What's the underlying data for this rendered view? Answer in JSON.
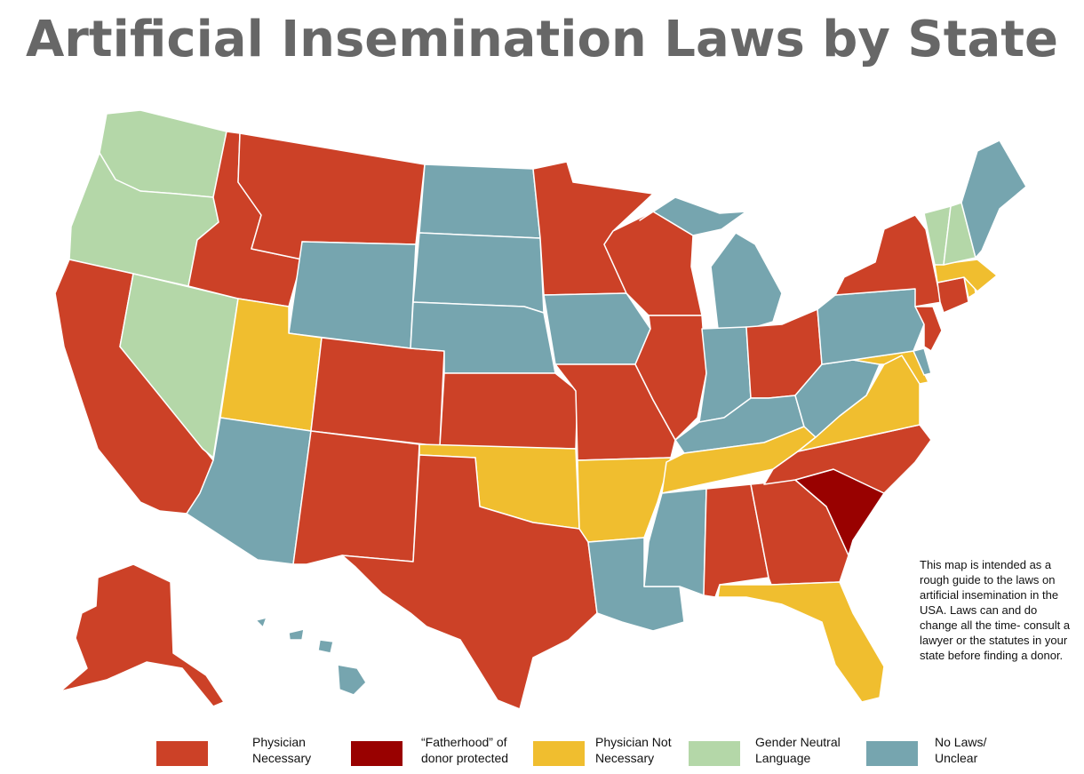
{
  "title": "Artificial Insemination Laws by State",
  "note": "This map is intended as a rough guide to the laws on artificial insemination in the USA. Laws can and do change all the time- consult a lawyer or the statutes in your state before finding a donor.",
  "colors": {
    "physician_necessary": "#cc4127",
    "fatherhood_protected": "#990100",
    "physician_not_necessary": "#f0be2f",
    "gender_neutral": "#b4d7a8",
    "no_laws": "#76a5af"
  },
  "legend": [
    {
      "key": "physician_necessary",
      "label": "Physician\nNecessary"
    },
    {
      "key": "fatherhood_protected",
      "label": "“Fatherhood” of\ndonor protected"
    },
    {
      "key": "physician_not_necessary",
      "label": "Physician Not\nNecessary"
    },
    {
      "key": "gender_neutral",
      "label": "Gender Neutral\nLanguage"
    },
    {
      "key": "no_laws",
      "label": "No Laws/\nUnclear"
    }
  ],
  "state_categories": {
    "WA": "gender_neutral",
    "OR": "gender_neutral",
    "NV": "gender_neutral",
    "VT": "gender_neutral",
    "NH": "gender_neutral",
    "CA": "physician_necessary",
    "ID": "physician_necessary",
    "MT": "physician_necessary",
    "CO": "physician_necessary",
    "NM": "physician_necessary",
    "TX": "physician_necessary",
    "KS": "physician_necessary",
    "MN": "physician_necessary",
    "WI": "physician_necessary",
    "MO": "physician_necessary",
    "IL": "physician_necessary",
    "OH": "physician_necessary",
    "NY": "physician_necessary",
    "NJ": "physician_necessary",
    "CT": "physician_necessary",
    "AL": "physician_necessary",
    "GA": "physician_necessary",
    "NC": "physician_necessary",
    "AK": "physician_necessary",
    "SC": "fatherhood_protected",
    "UT": "physician_not_necessary",
    "OK": "physician_not_necessary",
    "AR": "physician_not_necessary",
    "TN": "physician_not_necessary",
    "VA": "physician_not_necessary",
    "MD": "physician_not_necessary",
    "FL": "physician_not_necessary",
    "MA": "physician_not_necessary",
    "RI": "physician_not_necessary",
    "AZ": "no_laws",
    "WY": "no_laws",
    "ND": "no_laws",
    "SD": "no_laws",
    "NE": "no_laws",
    "IA": "no_laws",
    "LA": "no_laws",
    "MS": "no_laws",
    "IN": "no_laws",
    "MI": "no_laws",
    "KY": "no_laws",
    "WV": "no_laws",
    "PA": "no_laws",
    "ME": "no_laws",
    "DE": "no_laws",
    "HI": "no_laws"
  }
}
